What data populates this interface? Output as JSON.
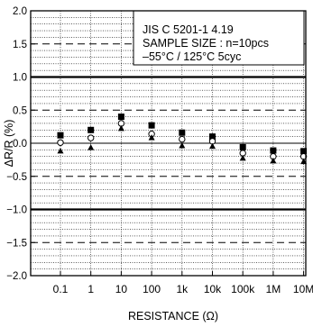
{
  "chart_data": {
    "type": "scatter",
    "title": "",
    "annotation_lines": [
      "JIS C 5201-1 4.19",
      "SAMPLE SIZE : n=10pcs",
      "–55°C / 125°C 5cyc"
    ],
    "xlabel": "RESISTANCE (Ω)",
    "ylabel": "ΔR/R (%)",
    "categories": [
      "0.1",
      "1",
      "10",
      "100",
      "1k",
      "10k",
      "100k",
      "1M",
      "10M"
    ],
    "ylim": [
      -2.0,
      2.0
    ],
    "yticks": [
      "2.0",
      "1.5",
      "1.0",
      "0.5",
      "0.0",
      "−0.5",
      "−1.0",
      "−1.5",
      "−2.0"
    ],
    "ytick_values": [
      2.0,
      1.5,
      1.0,
      0.5,
      0.0,
      -0.5,
      -1.0,
      -1.5,
      -2.0
    ],
    "limit_lines": [
      1.0,
      -1.0
    ],
    "dashed_lines": [
      1.5,
      0.5,
      -0.5,
      -1.5
    ],
    "grid": true,
    "series": [
      {
        "marker": "filled-square",
        "values": [
          0.12,
          0.2,
          0.4,
          0.27,
          0.16,
          0.1,
          -0.06,
          -0.11,
          -0.12
        ]
      },
      {
        "marker": "open-circle",
        "values": [
          0.01,
          0.08,
          0.3,
          0.14,
          0.06,
          0.03,
          -0.15,
          -0.2,
          -0.2
        ]
      },
      {
        "marker": "filled-triangle-up",
        "values": [
          -0.12,
          -0.07,
          0.22,
          0.08,
          -0.04,
          -0.05,
          -0.23,
          -0.27,
          -0.28
        ]
      }
    ]
  }
}
